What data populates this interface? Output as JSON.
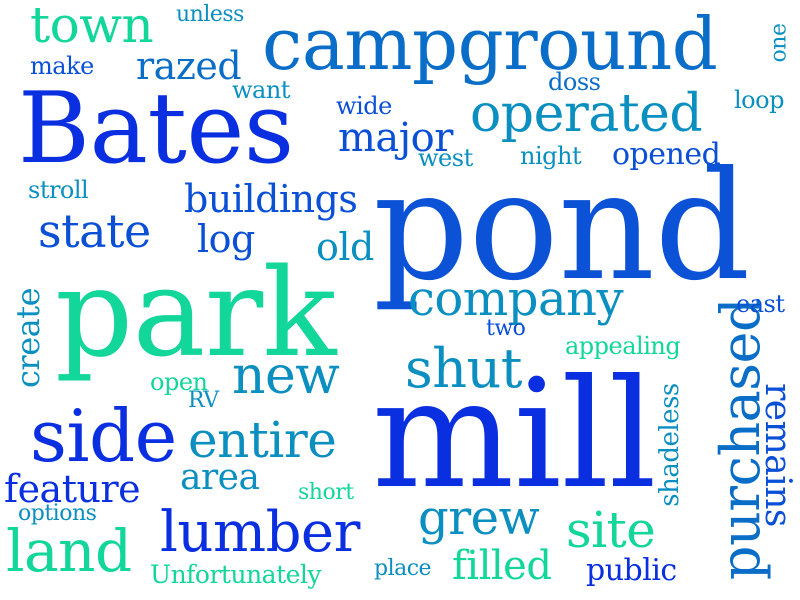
{
  "words": [
    {
      "text": "pond",
      "color": "#0b52d6"
    },
    {
      "text": "mill",
      "color": "#0a2fe0"
    },
    {
      "text": "park",
      "color": "#12d69a"
    },
    {
      "text": "Bates",
      "color": "#0a2fe0"
    },
    {
      "text": "campground",
      "color": "#0a6ec8"
    },
    {
      "text": "operated",
      "color": "#0a8fc0"
    },
    {
      "text": "company",
      "color": "#0a8fc0"
    },
    {
      "text": "side",
      "color": "#0a2fe0"
    },
    {
      "text": "purchased",
      "color": "#0a6ec8"
    },
    {
      "text": "shut",
      "color": "#0a8fc0"
    },
    {
      "text": "entire",
      "color": "#0a8fc0"
    },
    {
      "text": "lumber",
      "color": "#0a2fe0"
    },
    {
      "text": "new",
      "color": "#0a8fc0"
    },
    {
      "text": "town",
      "color": "#12d69a"
    },
    {
      "text": "land",
      "color": "#12d69a"
    },
    {
      "text": "state",
      "color": "#0a50d6"
    },
    {
      "text": "major",
      "color": "#0a50d6"
    },
    {
      "text": "grew",
      "color": "#0a8fc0"
    },
    {
      "text": "site",
      "color": "#12d69a"
    },
    {
      "text": "buildings",
      "color": "#0a50d6"
    },
    {
      "text": "feature",
      "color": "#0a2fe0"
    },
    {
      "text": "filled",
      "color": "#12d69a"
    },
    {
      "text": "remains",
      "color": "#0a50d6"
    },
    {
      "text": "razed",
      "color": "#0a6ec8"
    },
    {
      "text": "area",
      "color": "#0a8fc0"
    },
    {
      "text": "log",
      "color": "#0a50d6"
    },
    {
      "text": "old",
      "color": "#0a8fc0"
    },
    {
      "text": "create",
      "color": "#0a8fc0"
    },
    {
      "text": "opened",
      "color": "#0a50d6"
    },
    {
      "text": "public",
      "color": "#0a2fe0"
    },
    {
      "text": "Unfortunately",
      "color": "#12d69a"
    },
    {
      "text": "shadeless",
      "color": "#0a8fc0"
    },
    {
      "text": "appealing",
      "color": "#12d69a"
    },
    {
      "text": "east",
      "color": "#0a50d6"
    },
    {
      "text": "two",
      "color": "#0a50d6"
    },
    {
      "text": "make",
      "color": "#0a50d6"
    },
    {
      "text": "unless",
      "color": "#0a8fc0"
    },
    {
      "text": "want",
      "color": "#0a8fc0"
    },
    {
      "text": "wide",
      "color": "#0a50d6"
    },
    {
      "text": "west",
      "color": "#0a8fc0"
    },
    {
      "text": "night",
      "color": "#0a8fc0"
    },
    {
      "text": "doss",
      "color": "#0a6ec8"
    },
    {
      "text": "loop",
      "color": "#0a8fc0"
    },
    {
      "text": "one",
      "color": "#0a8fc0"
    },
    {
      "text": "stroll",
      "color": "#0a8fc0"
    },
    {
      "text": "open",
      "color": "#12d69a"
    },
    {
      "text": "RV",
      "color": "#0a8fc0"
    },
    {
      "text": "short",
      "color": "#12d69a"
    },
    {
      "text": "options",
      "color": "#0a8fc0"
    },
    {
      "text": "place",
      "color": "#0a8fc0"
    }
  ]
}
